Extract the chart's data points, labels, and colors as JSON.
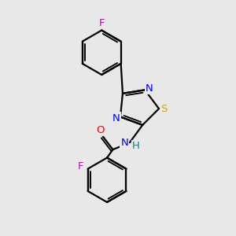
{
  "background_color": "#e8e8e8",
  "line_color": "black",
  "line_width": 1.6,
  "atom_colors": {
    "F": "#cc00cc",
    "N": "#0000ff",
    "S": "#ccaa00",
    "O": "#ff0000",
    "H": "#008888"
  },
  "font_size": 9.5
}
